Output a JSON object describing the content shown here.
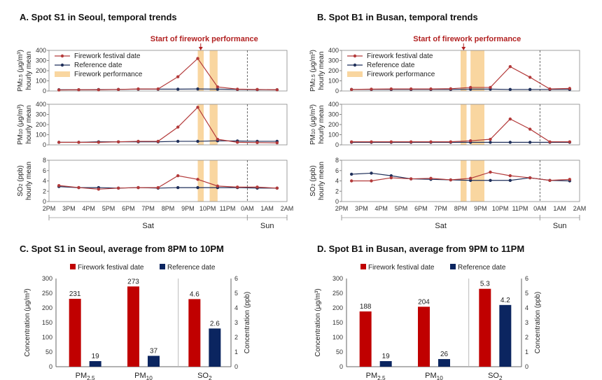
{
  "colors": {
    "festival": "#b33a3a",
    "reference": "#1f2f5a",
    "performance": "#f9d6a0",
    "bar_festival": "#c00000",
    "bar_reference": "#0b2560"
  },
  "chart_data": [
    {
      "id": "A",
      "type": "line",
      "title": "A. Spot S1 in Seoul, temporal trends",
      "annotation": "Start of firework performance",
      "legend": [
        "Firework festival date",
        "Reference date",
        "Firework performance"
      ],
      "x_tick_labels": [
        "2PM",
        "3PM",
        "4PM",
        "5PM",
        "6PM",
        "7PM",
        "8PM",
        "9PM",
        "10PM",
        "11PM",
        "0AM",
        "1AM",
        "2AM"
      ],
      "x_points": [
        0.5,
        1.5,
        2.5,
        3.5,
        4.5,
        5.5,
        6.5,
        7.5,
        8.5,
        9.5,
        10.5,
        11.5
      ],
      "day_labels": [
        "Sat",
        "Sun"
      ],
      "day_split": 10,
      "performance_bands": [
        [
          7.5,
          7.8
        ],
        [
          8.1,
          8.5
        ]
      ],
      "subplots": [
        {
          "ylabel": [
            "PM2.5 (μg/m³)",
            "hourly mean"
          ],
          "ylim": [
            0,
            400
          ],
          "yticks": [
            0,
            100,
            200,
            300,
            400
          ],
          "festival": [
            10,
            12,
            12,
            15,
            20,
            20,
            140,
            320,
            40,
            18,
            15,
            12
          ],
          "reference": [
            12,
            12,
            14,
            15,
            18,
            18,
            18,
            20,
            18,
            15,
            13,
            12
          ]
        },
        {
          "ylabel": [
            "PM10 (μg/m³)",
            "hourly mean"
          ],
          "ylim": [
            0,
            400
          ],
          "yticks": [
            0,
            100,
            200,
            300,
            400
          ],
          "festival": [
            25,
            25,
            25,
            30,
            35,
            35,
            175,
            370,
            55,
            25,
            22,
            20
          ],
          "reference": [
            25,
            25,
            30,
            30,
            30,
            30,
            35,
            35,
            40,
            38,
            35,
            35
          ]
        },
        {
          "ylabel": [
            "SO2 (ppb)",
            "hourly mean"
          ],
          "ylim": [
            0,
            8
          ],
          "yticks": [
            0,
            2,
            4,
            6,
            8
          ],
          "festival": [
            3.1,
            2.7,
            2.4,
            2.6,
            2.7,
            2.7,
            5.0,
            4.3,
            3.0,
            2.8,
            2.8,
            2.6
          ],
          "reference": [
            2.9,
            2.7,
            2.7,
            2.6,
            2.7,
            2.6,
            2.7,
            2.7,
            2.7,
            2.7,
            2.6,
            2.6
          ]
        }
      ]
    },
    {
      "id": "B",
      "type": "line",
      "title": "B. Spot B1 in Busan, temporal trends",
      "annotation": "Start of firework performance",
      "legend": [
        "Firework festival date",
        "Reference date",
        "Firework performance"
      ],
      "x_tick_labels": [
        "2PM",
        "3PM",
        "4PM",
        "5PM",
        "6PM",
        "7PM",
        "8PM",
        "9PM",
        "10PM",
        "11PM",
        "0AM",
        "1AM",
        "2AM"
      ],
      "x_points": [
        0.5,
        1.5,
        2.5,
        3.5,
        4.5,
        5.5,
        6.5,
        7.5,
        8.5,
        9.5,
        10.5,
        11.5
      ],
      "day_labels": [
        "Sat",
        "Sun"
      ],
      "day_split": 10,
      "performance_bands": [
        [
          6.0,
          6.3
        ],
        [
          6.5,
          7.2
        ]
      ],
      "subplots": [
        {
          "ylabel": [
            "PM2.5 (μg/m³)",
            "hourly mean"
          ],
          "ylim": [
            0,
            400
          ],
          "yticks": [
            0,
            100,
            200,
            300,
            400
          ],
          "festival": [
            15,
            18,
            20,
            20,
            20,
            22,
            35,
            35,
            240,
            135,
            20,
            25
          ],
          "reference": [
            15,
            15,
            15,
            15,
            15,
            15,
            18,
            18,
            15,
            15,
            15,
            15
          ]
        },
        {
          "ylabel": [
            "PM10 (μg/m³)",
            "hourly mean"
          ],
          "ylim": [
            0,
            400
          ],
          "yticks": [
            0,
            100,
            200,
            300,
            400
          ],
          "festival": [
            30,
            30,
            30,
            30,
            30,
            30,
            40,
            55,
            255,
            155,
            30,
            30
          ],
          "reference": [
            25,
            25,
            25,
            25,
            25,
            25,
            25,
            25,
            25,
            25,
            25,
            25
          ]
        },
        {
          "ylabel": [
            "SO2 (ppb)",
            "hourly mean"
          ],
          "ylim": [
            0,
            8
          ],
          "yticks": [
            0,
            2,
            4,
            6,
            8
          ],
          "festival": [
            4.0,
            4.0,
            4.6,
            4.4,
            4.5,
            4.2,
            4.5,
            5.7,
            5.0,
            4.6,
            4.1,
            4.3
          ],
          "reference": [
            5.3,
            5.5,
            5.0,
            4.4,
            4.3,
            4.2,
            4.1,
            4.1,
            4.1,
            4.6,
            4.1,
            4.0
          ]
        }
      ]
    },
    {
      "id": "C",
      "type": "bar",
      "title": "C. Spot S1 in Seoul, average from 8PM to 10PM",
      "categories": [
        "PM2.5",
        "PM10",
        "SO2"
      ],
      "series": [
        {
          "name": "Firework festival date",
          "values": [
            231,
            273,
            4.6
          ]
        },
        {
          "name": "Reference date",
          "values": [
            19,
            37,
            2.6
          ]
        }
      ],
      "data_labels": [
        [
          "231",
          "273",
          "4.6"
        ],
        [
          "19",
          "37",
          "2.6"
        ]
      ],
      "ylabel_left": "Concentration (μg/m³)",
      "ylim_left": [
        0,
        300
      ],
      "yticks_left": [
        0,
        50,
        100,
        150,
        200,
        250,
        300
      ],
      "ylabel_right": "Concentration (ppb)",
      "ylim_right": [
        0,
        6
      ],
      "yticks_right": [
        0,
        1,
        2,
        3,
        4,
        5,
        6
      ]
    },
    {
      "id": "D",
      "type": "bar",
      "title": "D. Spot B1 in Busan, average from 9PM to 11PM",
      "categories": [
        "PM2.5",
        "PM10",
        "SO2"
      ],
      "series": [
        {
          "name": "Firework festival date",
          "values": [
            188,
            204,
            5.3
          ]
        },
        {
          "name": "Reference date",
          "values": [
            19,
            26,
            4.2
          ]
        }
      ],
      "data_labels": [
        [
          "188",
          "204",
          "5.3"
        ],
        [
          "19",
          "26",
          "4.2"
        ]
      ],
      "ylabel_left": "Concentration (μg/m³)",
      "ylim_left": [
        0,
        300
      ],
      "yticks_left": [
        0,
        50,
        100,
        150,
        200,
        250,
        300
      ],
      "ylabel_right": "Concentration (ppb)",
      "ylim_right": [
        0,
        6
      ],
      "yticks_right": [
        0,
        1,
        2,
        3,
        4,
        5,
        6
      ]
    }
  ]
}
